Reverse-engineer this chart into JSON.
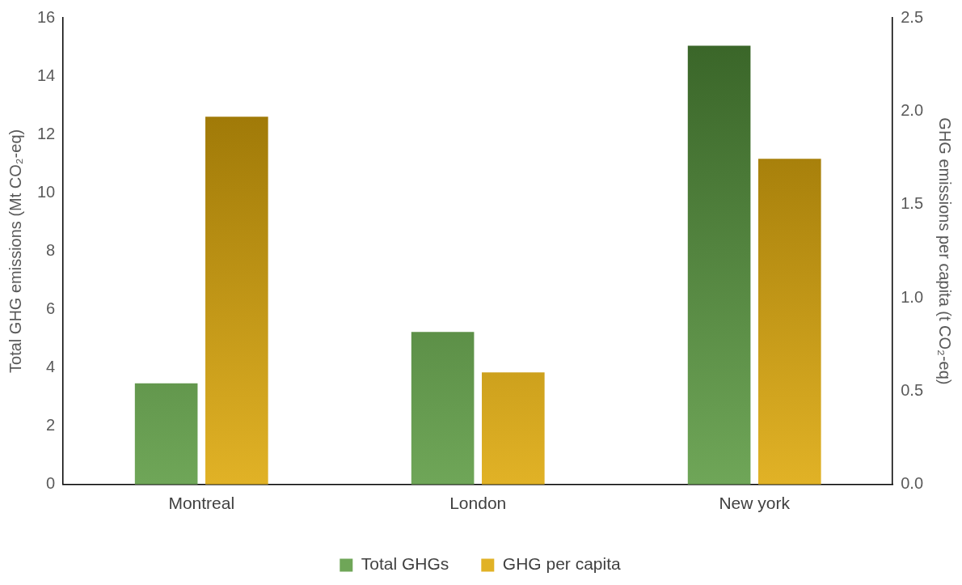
{
  "chart_data": {
    "type": "bar",
    "ylabel": "Total GHG emissions (Mt CO₂-eq)",
    "y2label": "GHG emissions per capita (t CO₂-eq)",
    "categories": [
      "Montreal",
      "London",
      "New york"
    ],
    "series": [
      {
        "name": "Total GHGs",
        "color": "#55963a",
        "values": [
          3.47,
          5.23,
          15.04
        ]
      },
      {
        "name": "GHG per capita",
        "color": "#dca400",
        "values": [
          1.97,
          0.6,
          1.745
        ],
        "axis": "y2"
      }
    ],
    "ylim": [
      0,
      16
    ],
    "yticks": [
      0,
      2,
      4,
      6,
      8,
      10,
      12,
      14,
      16
    ],
    "y2lim": [
      0,
      2.5
    ],
    "y2ticks": [
      {
        "value": 0,
        "label": "0.0"
      },
      {
        "value": 0.5,
        "label": "0.5"
      },
      {
        "value": 1,
        "label": "1.0"
      },
      {
        "value": 1.5,
        "label": "1.5"
      },
      {
        "value": 2,
        "label": "2.0"
      },
      {
        "value": 2.5,
        "label": "2.5"
      }
    ],
    "grid": false,
    "legend": "bottom"
  }
}
